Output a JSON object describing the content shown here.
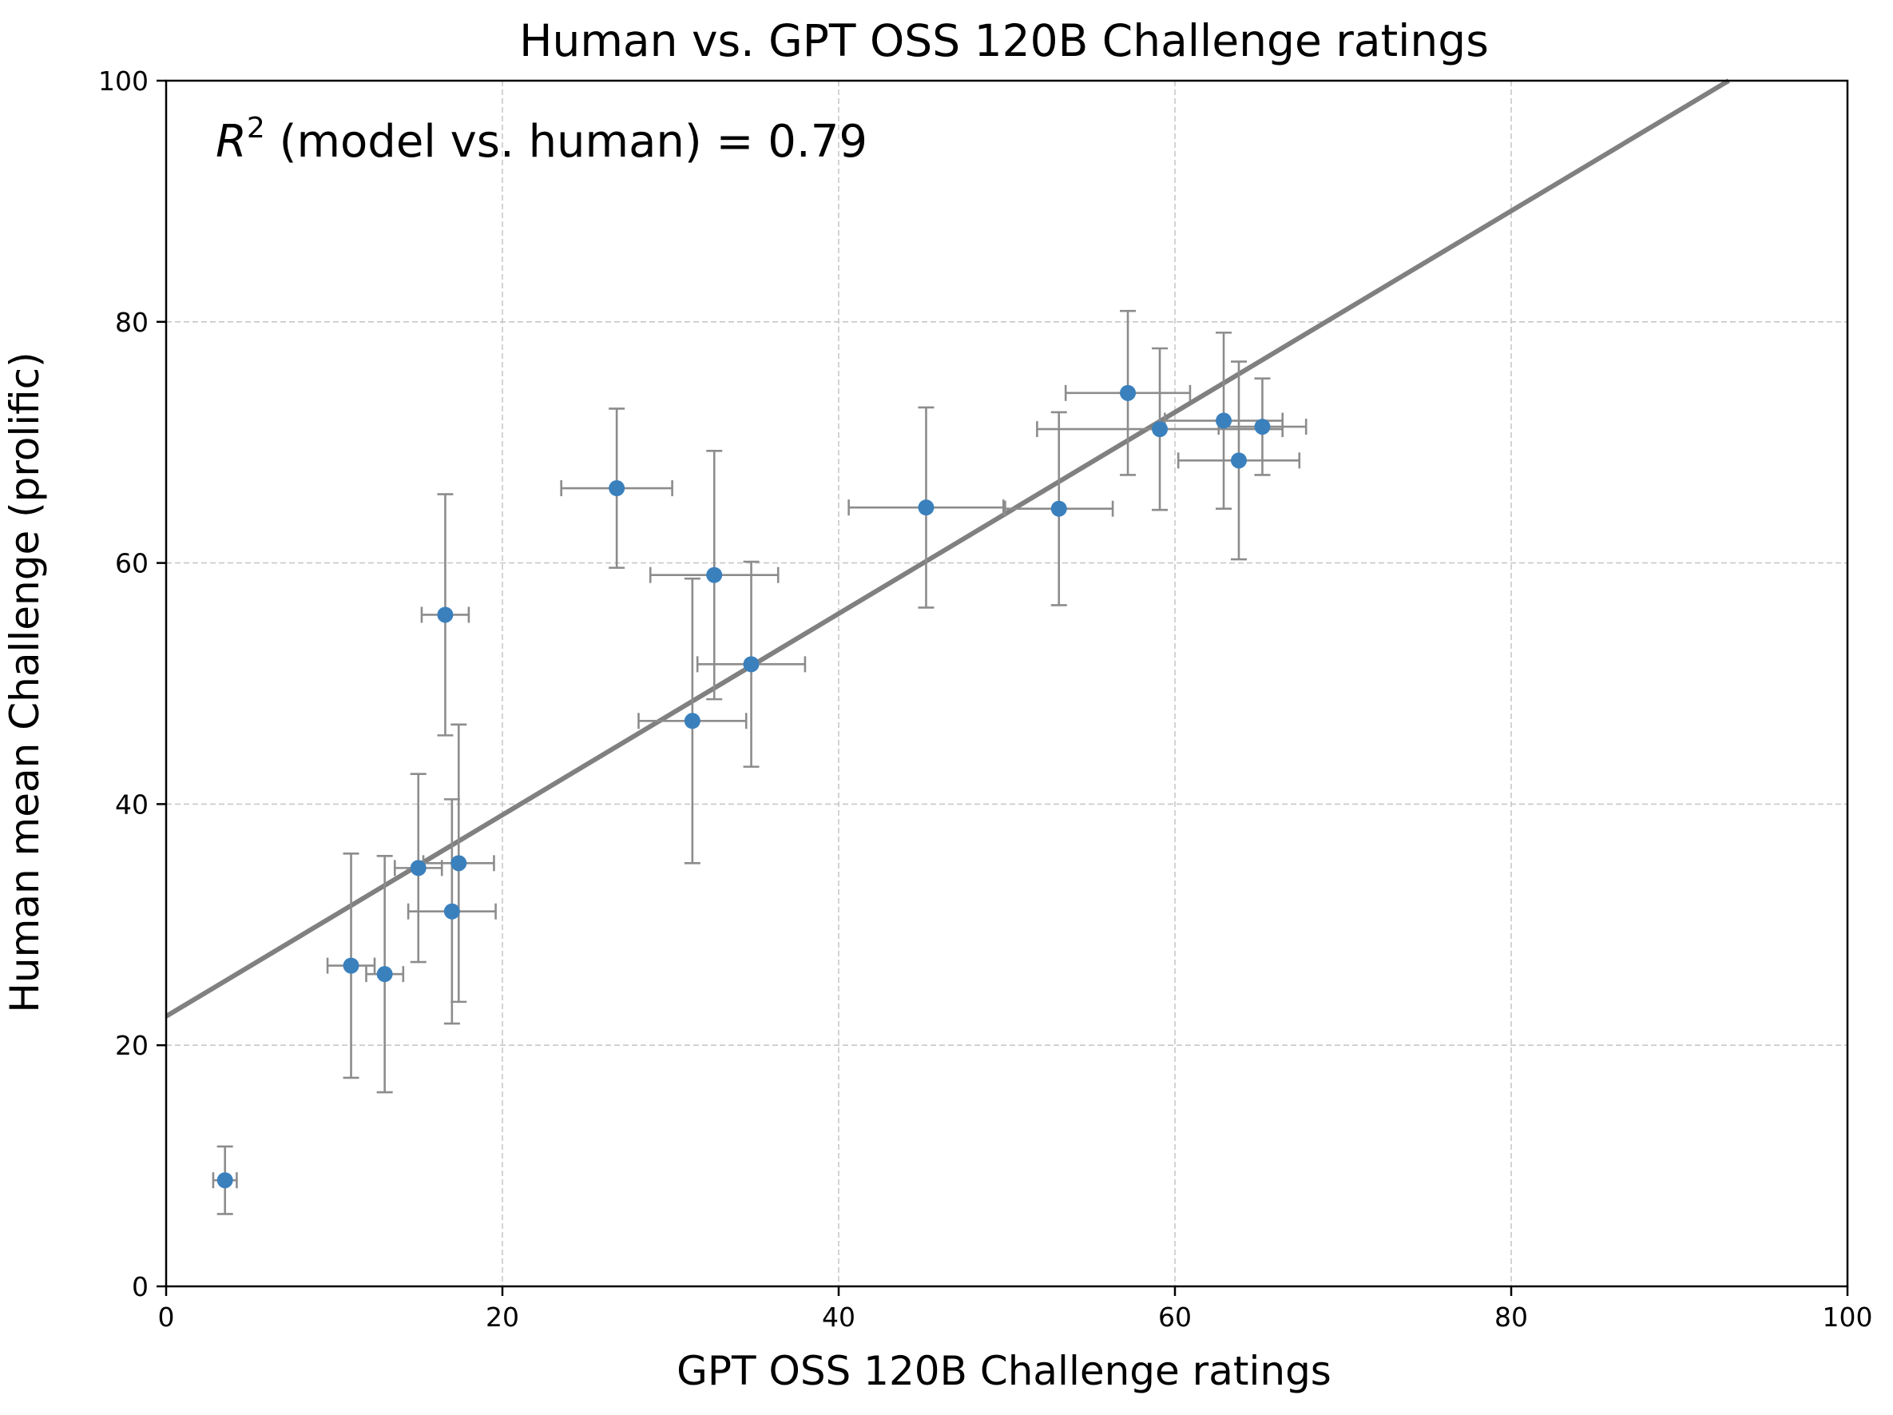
{
  "chart_data": {
    "type": "scatter",
    "title": "Human vs. GPT OSS 120B Challenge ratings",
    "xlabel": "GPT OSS 120B Challenge ratings",
    "ylabel": "Human mean Challenge (prolific)",
    "xlim": [
      0,
      100
    ],
    "ylim": [
      0,
      100
    ],
    "xticks": [
      0,
      20,
      40,
      60,
      80,
      100
    ],
    "yticks": [
      0,
      20,
      40,
      60,
      80,
      100
    ],
    "grid": true,
    "annotation": {
      "symbol": "R",
      "superscript": "2",
      "text": " (model vs. human) = 0.79"
    },
    "colors": {
      "points": "#3a80bd",
      "errorbars": "#8c8c8c",
      "fit_line": "#808080",
      "grid": "#c8c8c8"
    },
    "fit_line": {
      "slope": 0.835,
      "intercept": 22.4
    },
    "points": [
      {
        "x": 3.5,
        "y": 8.8,
        "xerr": 0.7,
        "yerr": 2.8
      },
      {
        "x": 11.0,
        "y": 26.6,
        "xerr": 1.4,
        "yerr": 9.3
      },
      {
        "x": 13.0,
        "y": 25.9,
        "xerr": 1.1,
        "yerr": 9.8
      },
      {
        "x": 15.0,
        "y": 34.7,
        "xerr": 1.4,
        "yerr": 7.8
      },
      {
        "x": 16.6,
        "y": 55.7,
        "xerr": 1.4,
        "yerr": 10.0
      },
      {
        "x": 17.0,
        "y": 31.1,
        "xerr": 2.6,
        "yerr": 9.3
      },
      {
        "x": 17.4,
        "y": 35.1,
        "xerr": 2.1,
        "yerr": 11.5
      },
      {
        "x": 26.8,
        "y": 66.2,
        "xerr": 3.3,
        "yerr": 6.6
      },
      {
        "x": 31.3,
        "y": 46.9,
        "xerr": 3.2,
        "yerr": 11.8
      },
      {
        "x": 32.6,
        "y": 59.0,
        "xerr": 3.8,
        "yerr": 10.3
      },
      {
        "x": 34.8,
        "y": 51.6,
        "xerr": 3.2,
        "yerr": 8.5
      },
      {
        "x": 45.2,
        "y": 64.6,
        "xerr": 4.6,
        "yerr": 8.3
      },
      {
        "x": 53.1,
        "y": 64.5,
        "xerr": 3.2,
        "yerr": 8.0
      },
      {
        "x": 57.2,
        "y": 74.1,
        "xerr": 3.7,
        "yerr": 6.8
      },
      {
        "x": 59.1,
        "y": 71.1,
        "xerr": 7.3,
        "yerr": 6.7
      },
      {
        "x": 62.9,
        "y": 71.8,
        "xerr": 3.5,
        "yerr": 7.3
      },
      {
        "x": 63.8,
        "y": 68.5,
        "xerr": 3.6,
        "yerr": 8.2
      },
      {
        "x": 65.2,
        "y": 71.3,
        "xerr": 2.6,
        "yerr": 4.0
      }
    ]
  }
}
